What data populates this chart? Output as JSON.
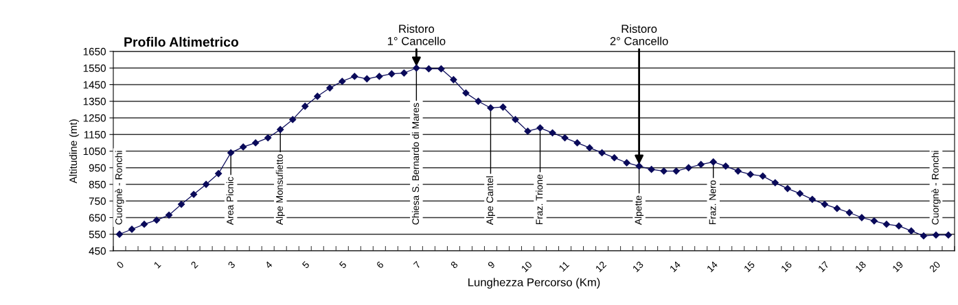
{
  "chart_data": {
    "type": "line",
    "title": "Profilo Altimetrico",
    "xlabel": "Lunghezza Percorso (Km)",
    "ylabel": "Altitudine (mt)",
    "categories": [
      "0",
      null,
      null,
      "1",
      null,
      null,
      "2",
      null,
      null,
      "3",
      null,
      null,
      "4",
      null,
      null,
      "5",
      null,
      null,
      "5",
      null,
      null,
      "6",
      null,
      null,
      "7",
      null,
      null,
      "8",
      null,
      null,
      "9",
      null,
      null,
      "10",
      null,
      null,
      "11",
      null,
      null,
      "12",
      null,
      null,
      "13",
      null,
      null,
      "14",
      null,
      null,
      "14",
      null,
      null,
      "15",
      null,
      null,
      "16",
      null,
      null,
      "17",
      null,
      null,
      "18",
      null,
      null,
      "19",
      null,
      null,
      "20",
      null
    ],
    "series": [
      {
        "color": "#0a0a5a",
        "values": [
          550,
          580,
          610,
          635,
          665,
          730,
          790,
          850,
          915,
          1040,
          1075,
          1100,
          1130,
          1180,
          1240,
          1320,
          1380,
          1430,
          1470,
          1500,
          1485,
          1500,
          1515,
          1520,
          1550,
          1545,
          1545,
          1480,
          1400,
          1350,
          1310,
          1315,
          1240,
          1170,
          1190,
          1160,
          1130,
          1100,
          1070,
          1040,
          1010,
          980,
          960,
          940,
          930,
          930,
          950,
          970,
          985,
          960,
          930,
          910,
          900,
          860,
          825,
          795,
          760,
          730,
          705,
          680,
          650,
          630,
          610,
          600,
          570,
          540,
          545,
          545
        ]
      }
    ],
    "ylim": [
      450,
      1650
    ],
    "yticks": [
      450,
      550,
      650,
      750,
      850,
      950,
      1050,
      1150,
      1250,
      1350,
      1450,
      1550,
      1650
    ],
    "grid": "y",
    "marker": "diamond",
    "line_style": "solid",
    "annotations": [
      {
        "text": "Cuorgnè - Ronchi",
        "y": 550
      },
      {
        "text": "Area Picnic",
        "y": 1040
      },
      {
        "text": "Alpe Monsufietto",
        "y": 1180
      },
      {
        "text": "Ristoro\n1° Cancello",
        "y": 1550
      },
      {
        "text": "Chiesa S. Bernardo di Mares",
        "y": 1550
      },
      {
        "text": "Alpe Cantel",
        "y": 1310
      },
      {
        "text": "Fraz. Trione",
        "y": 1190
      },
      {
        "text": "Ristoro\n2° Cancello",
        "y": 960
      },
      {
        "text": "Alpette",
        "y": 960
      },
      {
        "text": "Fraz. Nero",
        "y": 985
      },
      {
        "text": "Cuorgnè - Ronchi",
        "y": 545
      }
    ]
  }
}
